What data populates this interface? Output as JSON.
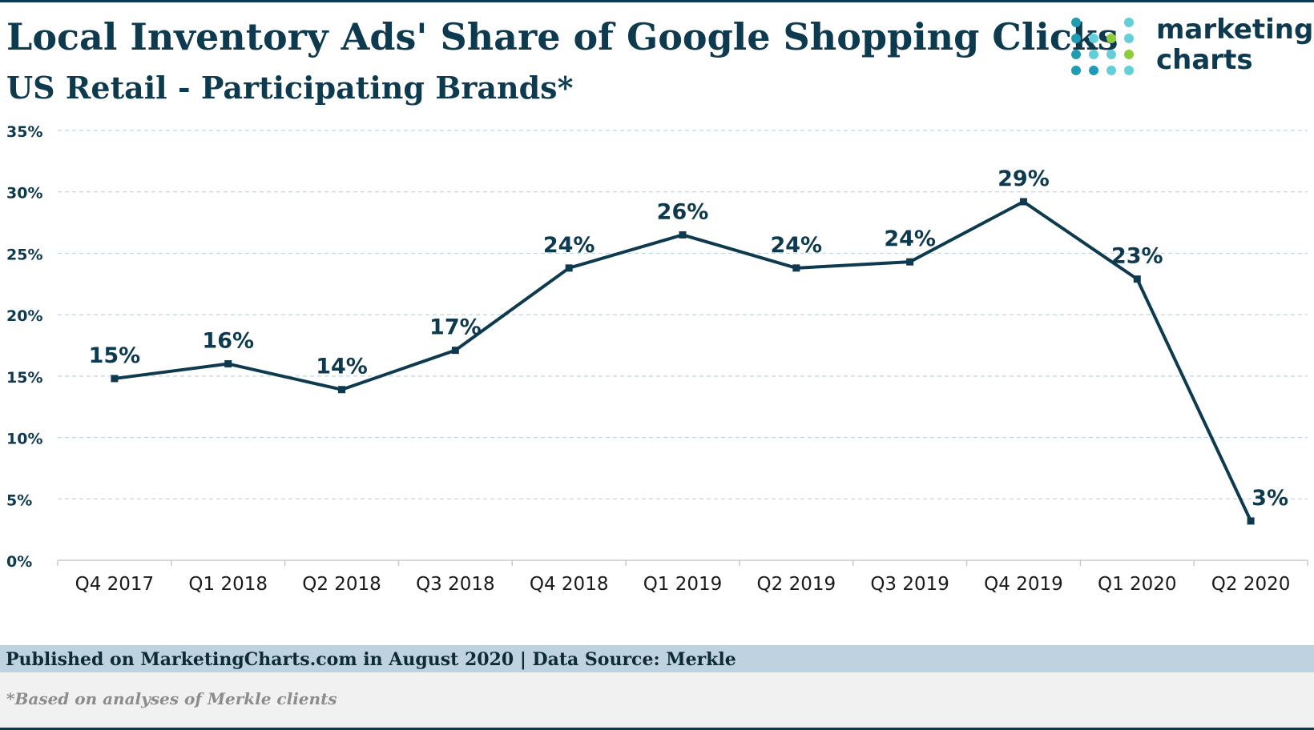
{
  "header": {
    "title": "Local Inventory Ads' Share of Google Shopping Clicks",
    "subtitle": "US Retail - Participating Brands*"
  },
  "logo": {
    "line1": "marketing",
    "line2": "charts",
    "dot_colors": [
      "#1f9bb4",
      "#63cfd8",
      "#8dcc3a"
    ]
  },
  "chart_data": {
    "type": "line",
    "title": "Local Inventory Ads' Share of Google Shopping Clicks",
    "subtitle": "US Retail - Participating Brands*",
    "categories": [
      "Q4 2017",
      "Q1 2018",
      "Q2 2018",
      "Q3 2018",
      "Q4 2018",
      "Q1 2019",
      "Q2 2019",
      "Q3 2019",
      "Q4 2019",
      "Q1 2020",
      "Q2 2020"
    ],
    "values": [
      14.8,
      16.0,
      13.9,
      17.1,
      23.8,
      26.5,
      23.8,
      24.3,
      29.2,
      22.9,
      3.2
    ],
    "data_labels": [
      "15%",
      "16%",
      "14%",
      "17%",
      "24%",
      "26%",
      "24%",
      "24%",
      "29%",
      "23%",
      "3%"
    ],
    "ylim": [
      0,
      35
    ],
    "yticks": [
      0,
      5,
      10,
      15,
      20,
      25,
      30,
      35
    ],
    "ytick_labels": [
      "0%",
      "5%",
      "10%",
      "15%",
      "20%",
      "25%",
      "30%",
      "35%"
    ],
    "xlabel": "",
    "ylabel": "",
    "grid": true,
    "legend": "none",
    "line_color": "#0e3a4f",
    "grid_color": "#bcd6e6"
  },
  "footer": {
    "source": "Published on MarketingCharts.com in August 2020 | Data Source: Merkle",
    "note": "*Based on analyses of Merkle clients"
  }
}
